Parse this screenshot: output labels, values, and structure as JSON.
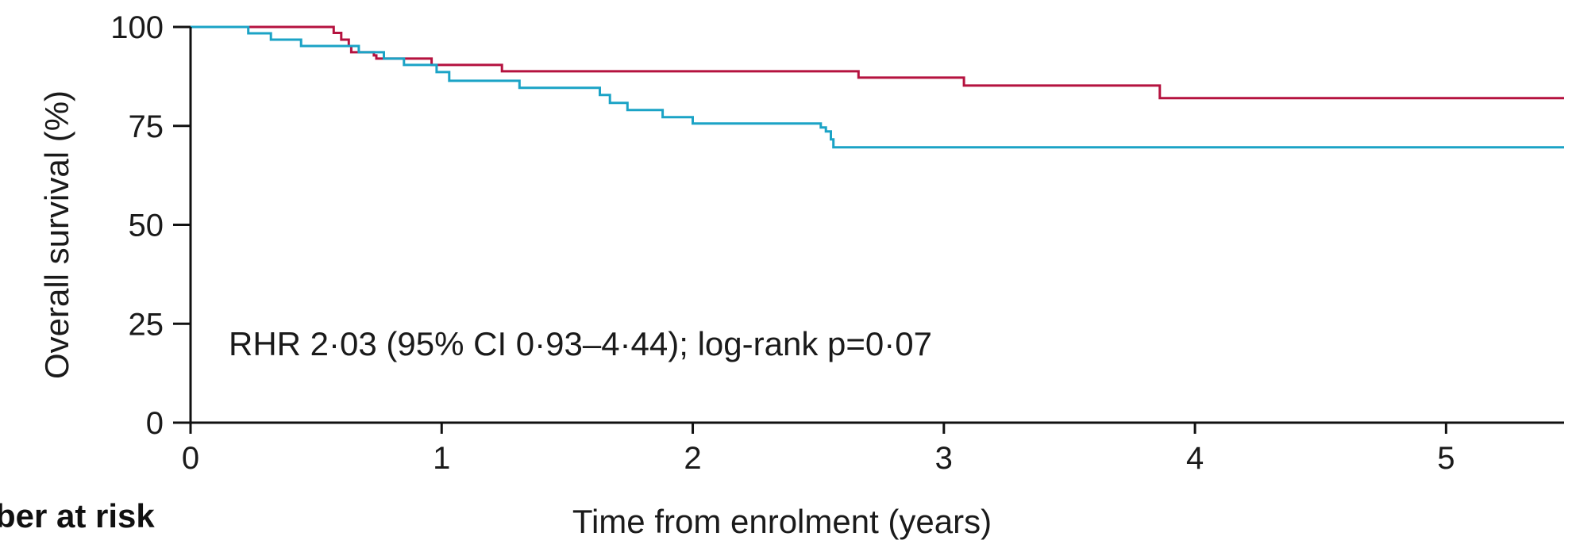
{
  "chart_data": {
    "type": "line",
    "xlabel": "Time from enrolment  (years)",
    "ylabel": "Overall survival (%)",
    "xlim": [
      0,
      5.47
    ],
    "ylim": [
      0,
      100
    ],
    "xticks": [
      0,
      1,
      2,
      3,
      4,
      5
    ],
    "yticks": [
      0,
      25,
      50,
      75,
      100
    ],
    "xtick_labels": [
      "0",
      "1",
      "2",
      "3",
      "4",
      "5"
    ],
    "ytick_labels": [
      "0",
      "25",
      "50",
      "75",
      "100"
    ],
    "annotation": "RHR 2·03 (95% CI 0·93–4·44); log-rank p=0·07",
    "number_at_risk_label": "ber at risk",
    "grid": false,
    "step": true,
    "series": [
      {
        "color": "#b5123f",
        "points": [
          [
            0,
            100
          ],
          [
            0.56,
            100
          ],
          [
            0.57,
            98.5
          ],
          [
            0.6,
            96.8
          ],
          [
            0.63,
            95.2
          ],
          [
            0.64,
            93.6
          ],
          [
            0.72,
            93.6
          ],
          [
            0.73,
            92.8
          ],
          [
            0.74,
            92
          ],
          [
            0.95,
            92
          ],
          [
            0.96,
            90.4
          ],
          [
            1.23,
            90.4
          ],
          [
            1.24,
            88.8
          ],
          [
            2.65,
            88.8
          ],
          [
            2.66,
            87.2
          ],
          [
            3.07,
            87.2
          ],
          [
            3.08,
            85.2
          ],
          [
            3.85,
            85.2
          ],
          [
            3.86,
            82
          ],
          [
            5.47,
            82
          ]
        ]
      },
      {
        "color": "#1ba3c6",
        "points": [
          [
            0,
            100
          ],
          [
            0.22,
            100
          ],
          [
            0.23,
            98.4
          ],
          [
            0.31,
            98.4
          ],
          [
            0.32,
            96.8
          ],
          [
            0.43,
            96.8
          ],
          [
            0.44,
            95.2
          ],
          [
            0.66,
            95.2
          ],
          [
            0.67,
            93.6
          ],
          [
            0.76,
            93.6
          ],
          [
            0.77,
            92
          ],
          [
            0.84,
            92
          ],
          [
            0.85,
            90.4
          ],
          [
            0.97,
            90.4
          ],
          [
            0.98,
            88.6
          ],
          [
            1.02,
            88.6
          ],
          [
            1.03,
            86.4
          ],
          [
            1.29,
            86.4
          ],
          [
            1.31,
            84.6
          ],
          [
            1.61,
            84.6
          ],
          [
            1.63,
            82.8
          ],
          [
            1.66,
            82.8
          ],
          [
            1.67,
            80.8
          ],
          [
            1.73,
            80.8
          ],
          [
            1.74,
            79
          ],
          [
            1.86,
            79
          ],
          [
            1.88,
            77.2
          ],
          [
            1.98,
            77.2
          ],
          [
            2.0,
            75.6
          ],
          [
            2.5,
            75.6
          ],
          [
            2.51,
            74.6
          ],
          [
            2.53,
            73.6
          ],
          [
            2.55,
            71.6
          ],
          [
            2.56,
            69.6
          ],
          [
            5.47,
            69.6
          ]
        ]
      }
    ]
  }
}
